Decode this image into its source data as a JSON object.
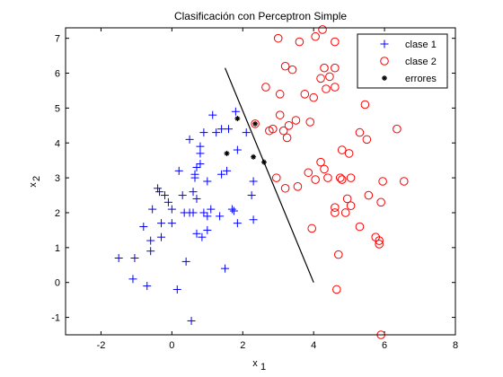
{
  "chart_data": {
    "type": "scatter",
    "title": "Clasificación con Perceptron Simple",
    "xlabel": {
      "base": "x",
      "sub": "1"
    },
    "ylabel": {
      "base": "x",
      "sub": "2"
    },
    "xlim": [
      -3,
      8
    ],
    "ylim": [
      -1.5,
      7.3
    ],
    "xticks": [
      -2,
      0,
      2,
      4,
      6,
      8
    ],
    "yticks": [
      -1,
      0,
      1,
      2,
      3,
      4,
      5,
      6,
      7
    ],
    "grid": false,
    "legend_position": "top-right",
    "series": [
      {
        "name": "clase 1",
        "marker": "plus",
        "color": "#0000ff",
        "points": [
          [
            -1.5,
            0.7
          ],
          [
            -1.1,
            0.1
          ],
          [
            -1.05,
            0.7
          ],
          [
            -0.8,
            1.6
          ],
          [
            -0.6,
            1.2
          ],
          [
            -0.6,
            0.9
          ],
          [
            -0.55,
            2.1
          ],
          [
            -0.7,
            -0.1
          ],
          [
            -0.4,
            2.7
          ],
          [
            -0.35,
            2.6
          ],
          [
            -0.3,
            1.3
          ],
          [
            -0.3,
            1.7
          ],
          [
            -0.2,
            2.5
          ],
          [
            -0.1,
            2.3
          ],
          [
            0,
            1.7
          ],
          [
            0,
            2.1
          ],
          [
            0.2,
            3.2
          ],
          [
            0.15,
            -0.2
          ],
          [
            0.3,
            2.5
          ],
          [
            0.35,
            2.0
          ],
          [
            0.4,
            0.6
          ],
          [
            0.5,
            4.1
          ],
          [
            0.5,
            2.0
          ],
          [
            0.55,
            -1.1
          ],
          [
            0.6,
            2.6
          ],
          [
            0.6,
            2.0
          ],
          [
            0.65,
            3.1
          ],
          [
            0.65,
            3.0
          ],
          [
            0.7,
            3.3
          ],
          [
            0.7,
            2.4
          ],
          [
            0.7,
            1.4
          ],
          [
            0.8,
            3.9
          ],
          [
            0.8,
            3.7
          ],
          [
            0.8,
            3.4
          ],
          [
            0.85,
            1.3
          ],
          [
            0.9,
            4.3
          ],
          [
            0.9,
            2.0
          ],
          [
            1.0,
            2.9
          ],
          [
            1.0,
            1.5
          ],
          [
            1.0,
            1.9
          ],
          [
            1.1,
            2.1
          ],
          [
            1.15,
            4.8
          ],
          [
            1.25,
            4.3
          ],
          [
            1.35,
            1.9
          ],
          [
            1.4,
            4.4
          ],
          [
            1.4,
            3.1
          ],
          [
            1.5,
            0.4
          ],
          [
            1.55,
            3.2
          ],
          [
            1.6,
            4.4
          ],
          [
            1.7,
            2.1
          ],
          [
            1.75,
            2.05
          ],
          [
            1.8,
            4.9
          ],
          [
            1.85,
            3.8
          ],
          [
            1.85,
            1.7
          ],
          [
            2.1,
            4.3
          ],
          [
            2.25,
            2.5
          ],
          [
            2.3,
            1.8
          ],
          [
            2.3,
            2.9
          ]
        ]
      },
      {
        "name": "clase 2",
        "marker": "circle",
        "color": "#ff0000",
        "points": [
          [
            2.35,
            4.55
          ],
          [
            2.65,
            5.6
          ],
          [
            2.75,
            4.35
          ],
          [
            2.85,
            4.4
          ],
          [
            2.95,
            3.0
          ],
          [
            3.0,
            7.0
          ],
          [
            3.05,
            4.8
          ],
          [
            3.05,
            5.4
          ],
          [
            3.15,
            4.35
          ],
          [
            3.2,
            6.2
          ],
          [
            3.2,
            2.7
          ],
          [
            3.25,
            4.15
          ],
          [
            3.3,
            4.5
          ],
          [
            3.4,
            6.1
          ],
          [
            3.5,
            4.65
          ],
          [
            3.55,
            2.75
          ],
          [
            3.6,
            6.9
          ],
          [
            3.75,
            5.4
          ],
          [
            3.85,
            3.15
          ],
          [
            3.9,
            4.6
          ],
          [
            3.95,
            1.55
          ],
          [
            4.0,
            5.3
          ],
          [
            4.05,
            7.05
          ],
          [
            4.05,
            2.95
          ],
          [
            4.2,
            3.45
          ],
          [
            4.2,
            5.85
          ],
          [
            4.25,
            7.25
          ],
          [
            4.3,
            6.15
          ],
          [
            4.3,
            3.25
          ],
          [
            4.35,
            5.55
          ],
          [
            4.4,
            3.0
          ],
          [
            4.45,
            5.9
          ],
          [
            4.6,
            6.9
          ],
          [
            4.6,
            6.15
          ],
          [
            4.6,
            2.15
          ],
          [
            4.6,
            2.0
          ],
          [
            4.6,
            5.6
          ],
          [
            4.65,
            -0.2
          ],
          [
            4.7,
            0.8
          ],
          [
            4.75,
            3.0
          ],
          [
            4.8,
            2.95
          ],
          [
            4.8,
            3.8
          ],
          [
            4.9,
            2.0
          ],
          [
            4.95,
            2.4
          ],
          [
            5.0,
            3.7
          ],
          [
            5.05,
            3.0
          ],
          [
            5.05,
            2.2
          ],
          [
            5.3,
            1.6
          ],
          [
            5.3,
            4.3
          ],
          [
            5.45,
            5.1
          ],
          [
            5.5,
            4.1
          ],
          [
            5.55,
            2.5
          ],
          [
            5.75,
            1.3
          ],
          [
            5.85,
            1.2
          ],
          [
            5.85,
            1.1
          ],
          [
            5.9,
            2.3
          ],
          [
            5.95,
            2.9
          ],
          [
            6.35,
            4.4
          ],
          [
            6.55,
            2.9
          ],
          [
            5.9,
            -1.5
          ]
        ]
      },
      {
        "name": "errores",
        "marker": "star",
        "color": "#000000",
        "points": [
          [
            1.55,
            3.7
          ],
          [
            1.85,
            4.7
          ],
          [
            2.3,
            3.6
          ],
          [
            2.35,
            4.55
          ],
          [
            2.6,
            3.45
          ]
        ]
      }
    ],
    "decision_boundary": {
      "color": "#000000",
      "points": [
        [
          1.5,
          6.15
        ],
        [
          4.0,
          0.0
        ]
      ]
    }
  }
}
